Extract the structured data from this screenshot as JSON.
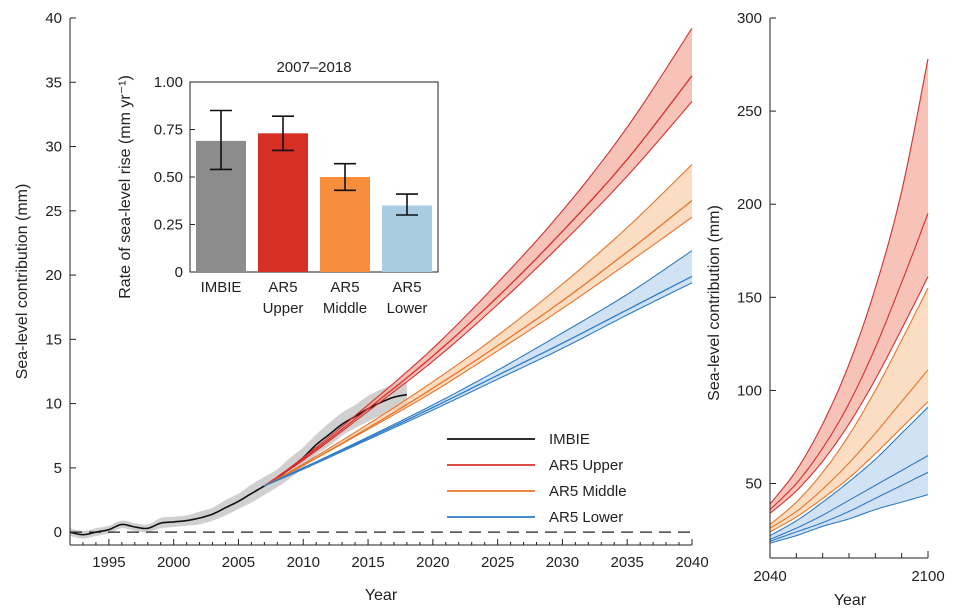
{
  "chart_data": [
    {
      "type": "line",
      "id": "main",
      "xlabel": "Year",
      "ylabel": "Sea-level contribution (mm)",
      "xlim": [
        1992,
        2040
      ],
      "ylim": [
        -1,
        40
      ],
      "x_ticks": [
        1995,
        2000,
        2005,
        2010,
        2015,
        2020,
        2025,
        2030,
        2035,
        2040
      ],
      "y_ticks": [
        0,
        5,
        10,
        15,
        20,
        25,
        30,
        35,
        40
      ],
      "zero_line": "dashed",
      "legend": {
        "placement": "lower-right",
        "entries": [
          "IMBIE",
          "AR5 Upper",
          "AR5 Middle",
          "AR5 Lower"
        ]
      },
      "series": [
        {
          "name": "IMBIE",
          "color": "#111111",
          "band_color": "#c8c8c8",
          "x": [
            1992,
            1993,
            1994,
            1995,
            1996,
            1997,
            1998,
            1999,
            2000,
            2001,
            2002,
            2003,
            2004,
            2005,
            2006,
            2007,
            2008,
            2009,
            2010,
            2011,
            2012,
            2013,
            2014,
            2015,
            2016,
            2017,
            2018
          ],
          "y": [
            0.0,
            -0.2,
            0.0,
            0.2,
            0.6,
            0.4,
            0.3,
            0.7,
            0.8,
            0.9,
            1.1,
            1.4,
            1.9,
            2.4,
            3.0,
            3.6,
            4.2,
            5.0,
            5.8,
            6.8,
            7.6,
            8.4,
            9.0,
            9.6,
            10.1,
            10.5,
            10.7
          ],
          "band": [
            0.3,
            0.3,
            0.3,
            0.3,
            0.3,
            0.3,
            0.3,
            0.4,
            0.4,
            0.4,
            0.5,
            0.5,
            0.6,
            0.6,
            0.7,
            0.7,
            0.7,
            0.8,
            0.8,
            0.8,
            0.9,
            0.9,
            0.9,
            1.0,
            1.0,
            1.0,
            1.0
          ]
        },
        {
          "name": "AR5 Upper",
          "color": "#d62f2f",
          "band_color": "#f4a898",
          "x": [
            2007,
            2010,
            2015,
            2020,
            2025,
            2030,
            2035,
            2040
          ],
          "lines": [
            [
              3.6,
              5.8,
              9.9,
              14.3,
              19.4,
              25.0,
              31.5,
              39.2
            ],
            [
              3.6,
              5.7,
              9.6,
              13.7,
              18.3,
              23.4,
              29.0,
              35.5
            ],
            [
              3.6,
              5.6,
              9.4,
              13.3,
              17.7,
              22.5,
              27.7,
              33.5
            ]
          ]
        },
        {
          "name": "AR5 Middle",
          "color": "#e8742a",
          "band_color": "#f8cfa8",
          "x": [
            2007,
            2010,
            2015,
            2020,
            2025,
            2030,
            2035,
            2040
          ],
          "lines": [
            [
              3.6,
              5.3,
              8.4,
              11.7,
              15.3,
              19.3,
              23.7,
              28.6
            ],
            [
              3.6,
              5.2,
              8.1,
              11.2,
              14.5,
              18.0,
              21.8,
              25.8
            ],
            [
              3.6,
              5.2,
              8.0,
              10.9,
              14.1,
              17.4,
              20.9,
              24.5
            ]
          ]
        },
        {
          "name": "AR5 Lower",
          "color": "#2f7bc4",
          "band_color": "#bcd6ee",
          "x": [
            2007,
            2010,
            2015,
            2020,
            2025,
            2030,
            2035,
            2040
          ],
          "lines": [
            [
              3.6,
              5.0,
              7.4,
              9.9,
              12.6,
              15.5,
              18.5,
              21.9
            ],
            [
              3.6,
              5.0,
              7.3,
              9.7,
              12.2,
              14.7,
              17.3,
              19.9
            ],
            [
              3.6,
              4.9,
              7.2,
              9.5,
              11.9,
              14.3,
              16.9,
              19.4
            ]
          ]
        }
      ]
    },
    {
      "type": "bar",
      "id": "inset",
      "title": "2007–2018",
      "ylabel": "Rate of sea-level rise (mm yr⁻¹)",
      "ylim": [
        0,
        1.0
      ],
      "y_ticks": [
        0,
        0.25,
        0.5,
        0.75,
        1.0
      ],
      "y_tick_labels": [
        "0",
        "0.25",
        "0.50",
        "0.75",
        "1.00"
      ],
      "categories": [
        [
          "IMBIE"
        ],
        [
          "AR5",
          "Upper"
        ],
        [
          "AR5",
          "Middle"
        ],
        [
          "AR5",
          "Lower"
        ]
      ],
      "values": [
        0.69,
        0.73,
        0.5,
        0.35
      ],
      "errors_low": [
        0.54,
        0.64,
        0.43,
        0.3
      ],
      "errors_high": [
        0.85,
        0.82,
        0.57,
        0.41
      ],
      "colors": [
        "#8c8c8c",
        "#d62f23",
        "#f68e3c",
        "#a8cde3"
      ]
    },
    {
      "type": "line",
      "id": "long-term",
      "xlabel": "Year",
      "ylabel": "Sea-level contribution (mm)",
      "xlim": [
        2040,
        2100
      ],
      "ylim": [
        10,
        300
      ],
      "x_ticks": [
        2040,
        2100
      ],
      "x_minor_ticks": [
        2050,
        2060,
        2070,
        2080,
        2090
      ],
      "y_ticks": [
        50,
        100,
        150,
        200,
        250,
        300
      ],
      "series": [
        {
          "name": "AR5 Upper",
          "color": "#d62f2f",
          "band_color": "#f4a898",
          "x": [
            2040,
            2050,
            2060,
            2070,
            2080,
            2090,
            2100
          ],
          "lines": [
            [
              39,
              57,
              82,
              114,
              155,
              207,
              278
            ],
            [
              36,
              50,
              69,
              93,
              123,
              158,
              195
            ],
            [
              34,
              46,
              62,
              82,
              106,
              133,
              161
            ]
          ]
        },
        {
          "name": "AR5 Middle",
          "color": "#e8742a",
          "band_color": "#f8cfa8",
          "x": [
            2040,
            2050,
            2060,
            2070,
            2080,
            2090,
            2100
          ],
          "lines": [
            [
              28,
              40,
              56,
              76,
              100,
              127,
              155
            ],
            [
              26,
              35,
              47,
              61,
              77,
              94,
              111
            ],
            [
              24,
              32,
              42,
              53,
              66,
              80,
              94
            ]
          ]
        },
        {
          "name": "AR5 Lower",
          "color": "#2f7bc4",
          "band_color": "#bcd6ee",
          "x": [
            2040,
            2050,
            2060,
            2070,
            2080,
            2090,
            2100
          ],
          "lines": [
            [
              22,
              30,
              40,
              51,
              63,
              77,
              91
            ],
            [
              20,
              26,
              33,
              41,
              49,
              57,
              65
            ],
            [
              19,
              24,
              29,
              35,
              42,
              49,
              56
            ],
            [
              18,
              22,
              27,
              31,
              36,
              40,
              44
            ]
          ]
        }
      ]
    }
  ]
}
